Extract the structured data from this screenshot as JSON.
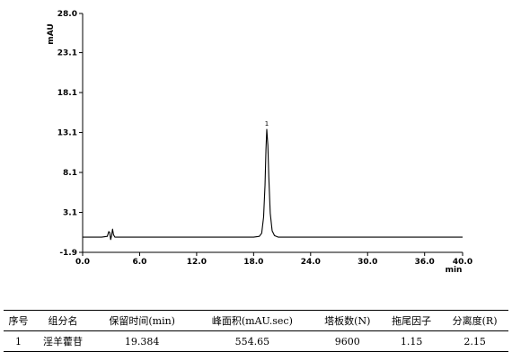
{
  "chart_data": {
    "type": "line",
    "title": "",
    "ylabel": "mAU",
    "xlabel": "min",
    "xlim": [
      0.0,
      40.0
    ],
    "ylim": [
      -1.9,
      28.0
    ],
    "xticks": [
      "0.0",
      "6.0",
      "12.0",
      "18.0",
      "24.0",
      "30.0",
      "36.0",
      "40.0"
    ],
    "xtick_values": [
      0,
      6,
      12,
      18,
      24,
      30,
      36,
      40
    ],
    "yticks": [
      "-1.9",
      "3.1",
      "8.1",
      "13.1",
      "18.1",
      "23.1",
      "28.0"
    ],
    "ytick_values": [
      -1.9,
      3.1,
      8.1,
      13.1,
      18.1,
      23.1,
      28.0
    ],
    "grid": false,
    "series": [
      {
        "x": [
          0.0,
          2.0,
          2.6,
          2.75,
          2.85,
          2.95,
          3.05,
          3.15,
          3.25,
          3.4,
          3.6,
          5.0,
          8.0,
          12.0,
          16.0,
          18.0,
          18.6,
          18.85,
          19.05,
          19.2,
          19.3,
          19.384,
          19.5,
          19.6,
          19.75,
          19.95,
          20.2,
          20.6,
          22.0,
          26.0,
          30.0,
          34.0,
          38.0,
          40.0
        ],
        "y": [
          0.0,
          0.0,
          0.1,
          0.7,
          0.6,
          -0.3,
          0.2,
          1.0,
          0.3,
          0.0,
          0.0,
          0.0,
          0.0,
          0.0,
          0.0,
          0.0,
          0.1,
          0.5,
          2.5,
          6.5,
          11.0,
          13.5,
          11.5,
          7.5,
          3.0,
          0.8,
          0.2,
          0.0,
          0.0,
          0.0,
          0.0,
          0.0,
          0.0,
          0.0
        ]
      }
    ],
    "annotations": [
      {
        "text": "1",
        "x": 19.384,
        "y": 13.5
      }
    ]
  },
  "table": {
    "headers": [
      "序号",
      "组分名",
      "保留时间(min)",
      "峰面积(mAU.sec)",
      "塔板数(N)",
      "拖尾因子",
      "分离度(R)"
    ],
    "rows": [
      [
        "1",
        "淫羊藿苷",
        "19.384",
        "554.65",
        "9600",
        "1.15",
        "2.15"
      ]
    ]
  }
}
